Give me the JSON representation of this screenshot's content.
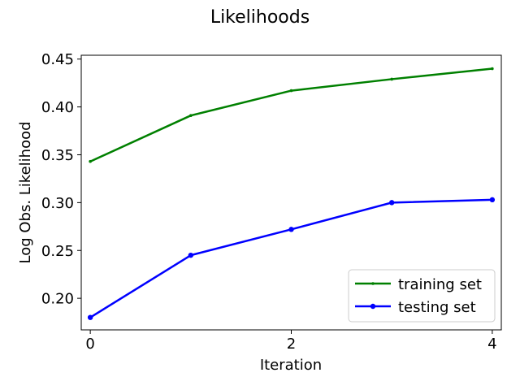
{
  "chart_data": {
    "type": "line",
    "title": "Likelihoods",
    "xlabel": "Iteration",
    "ylabel": "Log Obs. Likelihood",
    "x": [
      0,
      1,
      2,
      3,
      4
    ],
    "xlim": [
      -0.09,
      4.09
    ],
    "ylim": [
      0.167,
      0.454
    ],
    "xticks": [
      0,
      2,
      4
    ],
    "yticks": [
      0.2,
      0.25,
      0.3,
      0.35,
      0.4,
      0.45
    ],
    "ytick_labels": [
      "0.20",
      "0.25",
      "0.30",
      "0.35",
      "0.40",
      "0.45"
    ],
    "grid": false,
    "legend_position": "bottom-right",
    "series": [
      {
        "name": "training set",
        "color": "#008000",
        "marker": "point",
        "values": [
          0.343,
          0.391,
          0.417,
          0.429,
          0.44
        ]
      },
      {
        "name": "testing set",
        "color": "#0000ff",
        "marker": "circle",
        "values": [
          0.18,
          0.245,
          0.272,
          0.3,
          0.303
        ]
      }
    ]
  }
}
